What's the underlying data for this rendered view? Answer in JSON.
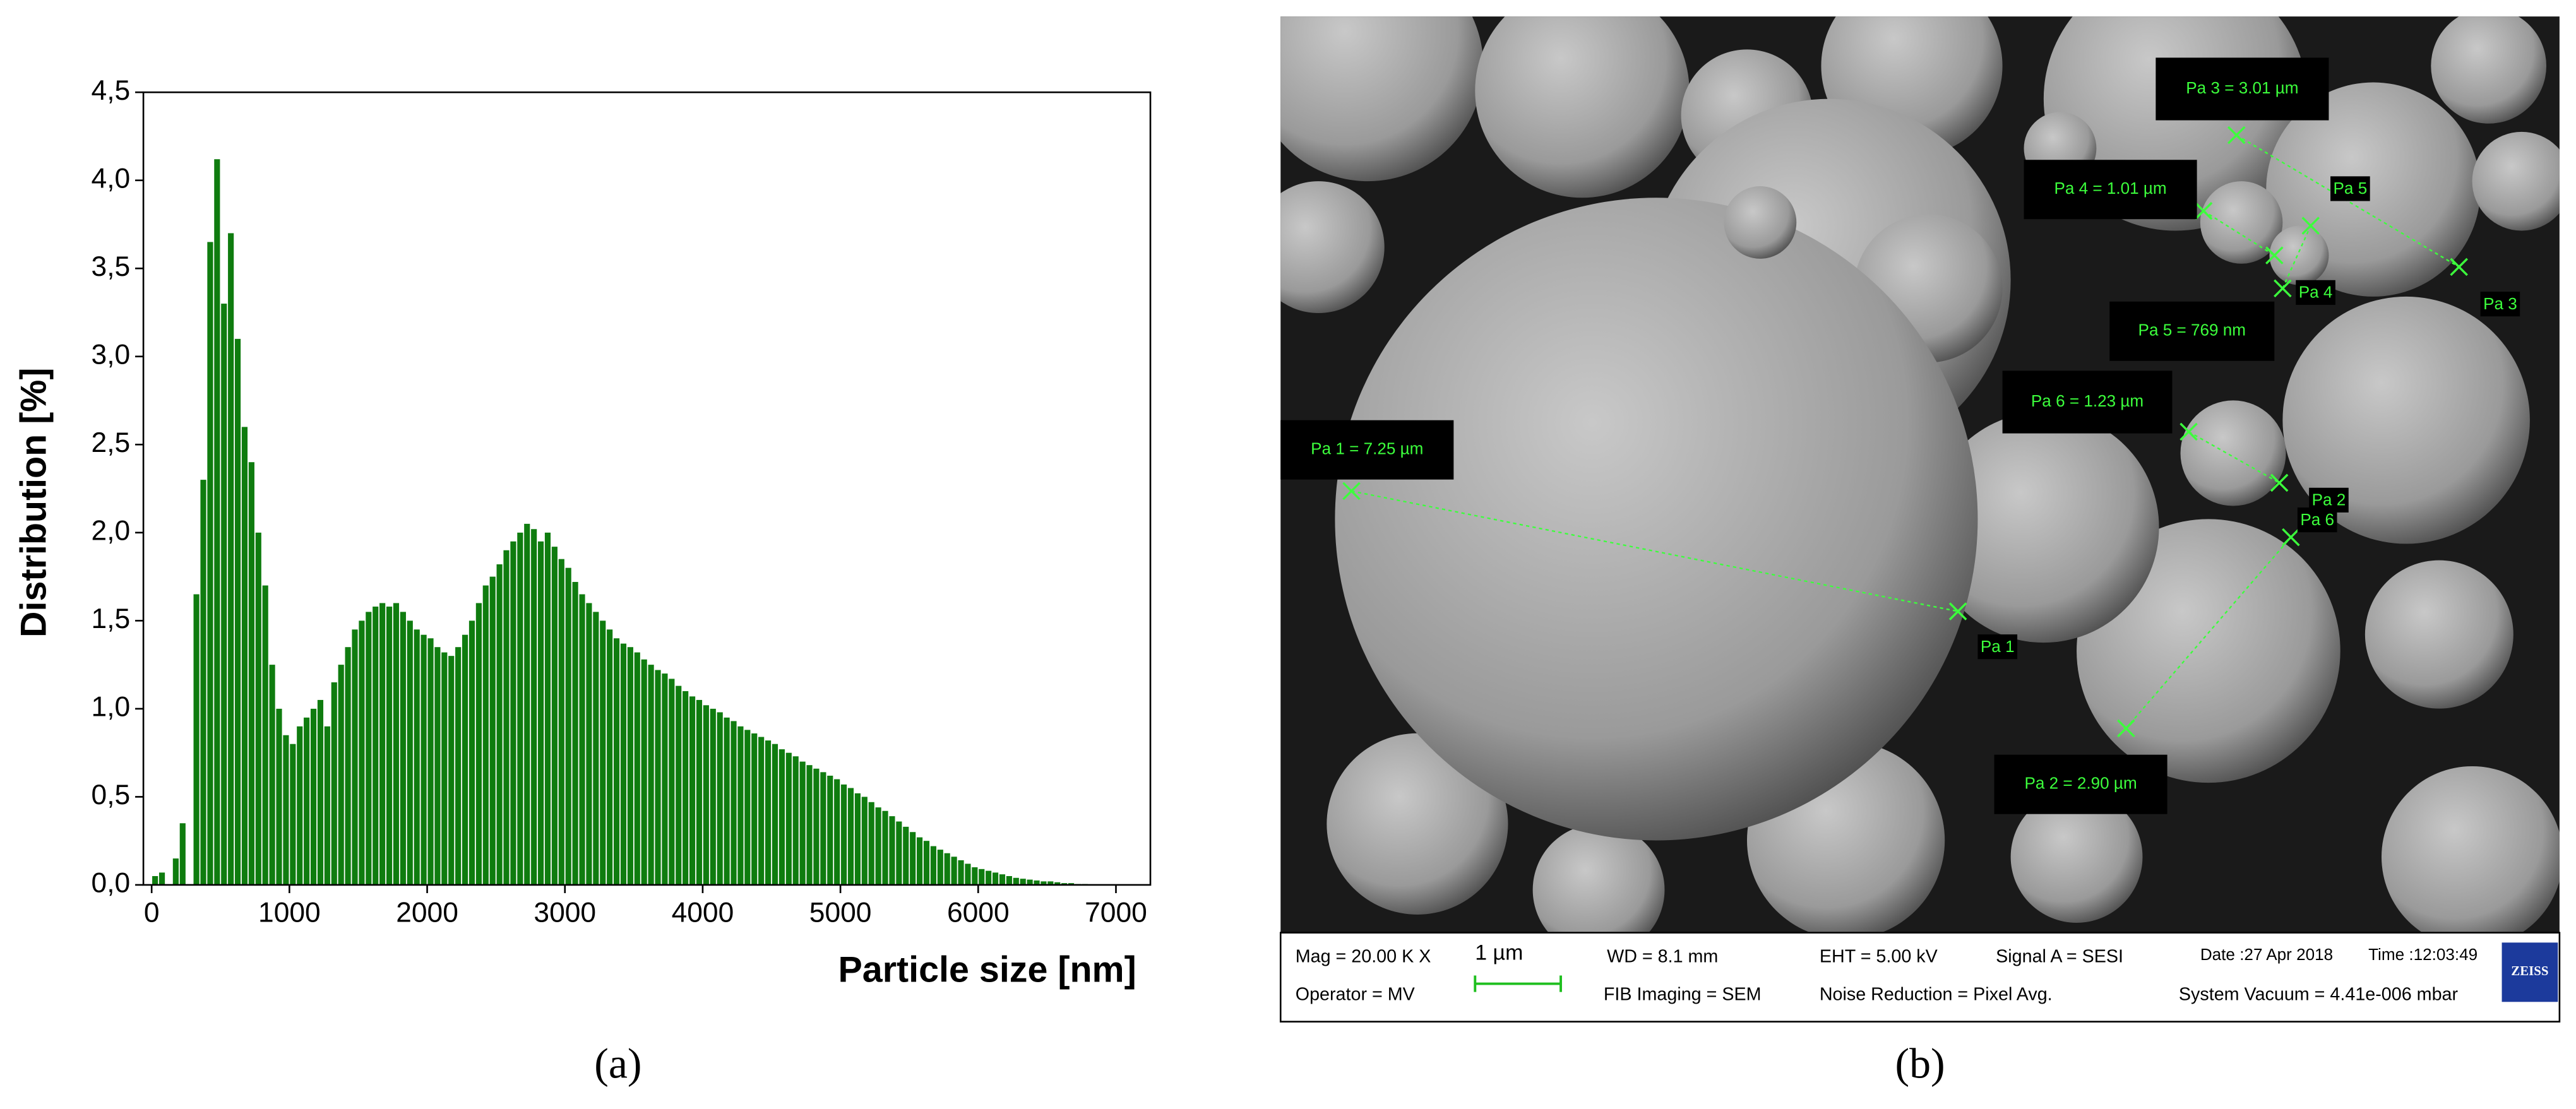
{
  "chart_data": {
    "type": "histogram",
    "panel_label": "(a)",
    "xlabel": "Particle size [nm]",
    "ylabel": "Distribution [%]",
    "color": "#0f7c0f",
    "bins": [
      0,
      50,
      100,
      150,
      200,
      250,
      300,
      350,
      400,
      450,
      500,
      550,
      600,
      650,
      700,
      750,
      800,
      850,
      900,
      950,
      1000,
      1050,
      1100,
      1150,
      1200,
      1250,
      1300,
      1350,
      1400,
      1450,
      1500,
      1550,
      1600,
      1650,
      1700,
      1750,
      1800,
      1850,
      1900,
      1950,
      2000,
      2050,
      2100,
      2150,
      2200,
      2250,
      2300,
      2350,
      2400,
      2450,
      2500,
      2550,
      2600,
      2650,
      2700,
      2750,
      2800,
      2850,
      2900,
      2950,
      3000,
      3050,
      3100,
      3150,
      3200,
      3250,
      3300,
      3350,
      3400,
      3450,
      3500,
      3550,
      3600,
      3650,
      3700,
      3750,
      3800,
      3850,
      3900,
      3950,
      4000,
      4050,
      4100,
      4150,
      4200,
      4250,
      4300,
      4350,
      4400,
      4450,
      4500,
      4550,
      4600,
      4650,
      4700,
      4750,
      4800,
      4850,
      4900,
      4950,
      5000,
      5050,
      5100,
      5150,
      5200,
      5250,
      5300,
      5350,
      5400,
      5450,
      5500,
      5550,
      5600,
      5650,
      5700,
      5750,
      5800,
      5850,
      5900,
      5950,
      6000,
      6050,
      6100,
      6150,
      6200,
      6250,
      6300,
      6350,
      6400,
      6450,
      6500,
      6550,
      6600,
      6650,
      6700,
      6750,
      6800,
      6850,
      6900,
      6950,
      7000
    ],
    "counts": [
      0.05,
      0.07,
      0,
      0.15,
      0.35,
      0,
      1.65,
      2.3,
      3.65,
      4.12,
      3.3,
      3.7,
      3.1,
      2.6,
      2.4,
      2.0,
      1.7,
      1.25,
      1.0,
      0.85,
      0.8,
      0.9,
      0.95,
      1.0,
      1.05,
      0.9,
      1.15,
      1.25,
      1.35,
      1.45,
      1.5,
      1.55,
      1.58,
      1.6,
      1.58,
      1.6,
      1.55,
      1.5,
      1.45,
      1.42,
      1.4,
      1.35,
      1.32,
      1.3,
      1.35,
      1.42,
      1.5,
      1.6,
      1.7,
      1.75,
      1.82,
      1.9,
      1.95,
      2.0,
      2.05,
      2.02,
      1.95,
      2.0,
      1.92,
      1.85,
      1.8,
      1.72,
      1.65,
      1.6,
      1.55,
      1.5,
      1.45,
      1.4,
      1.37,
      1.35,
      1.32,
      1.28,
      1.25,
      1.22,
      1.2,
      1.17,
      1.13,
      1.1,
      1.07,
      1.05,
      1.02,
      1.0,
      0.98,
      0.95,
      0.93,
      0.9,
      0.88,
      0.86,
      0.84,
      0.82,
      0.8,
      0.77,
      0.75,
      0.73,
      0.7,
      0.68,
      0.66,
      0.64,
      0.62,
      0.6,
      0.57,
      0.55,
      0.52,
      0.5,
      0.47,
      0.44,
      0.42,
      0.39,
      0.36,
      0.33,
      0.3,
      0.27,
      0.25,
      0.22,
      0.2,
      0.18,
      0.16,
      0.14,
      0.12,
      0.1,
      0.09,
      0.08,
      0.07,
      0.06,
      0.05,
      0.04,
      0.035,
      0.03,
      0.025,
      0.02,
      0.02,
      0.015,
      0.01,
      0.01,
      0.005,
      0.005,
      0,
      0,
      0,
      0
    ],
    "xlim": [
      -60,
      7250
    ],
    "ylim": [
      0,
      4.5
    ],
    "xticks": [
      0,
      1000,
      2000,
      3000,
      4000,
      5000,
      6000,
      7000
    ],
    "yticks": [
      {
        "value": 0,
        "label": "0,0"
      },
      {
        "value": 0.5,
        "label": "0,5"
      },
      {
        "value": 1,
        "label": "1,0"
      },
      {
        "value": 1.5,
        "label": "1,5"
      },
      {
        "value": 2,
        "label": "2,0"
      },
      {
        "value": 2.5,
        "label": "2,5"
      },
      {
        "value": 3,
        "label": "3,0"
      },
      {
        "value": 3.5,
        "label": "3,5"
      },
      {
        "value": 4,
        "label": "4,0"
      },
      {
        "value": 4.5,
        "label": "4,5"
      }
    ],
    "grid": false
  },
  "sem": {
    "panel_label": "(b)",
    "measurements": [
      "Pa 1 = 7.25 µm",
      "Pa 2 = 2.90 µm",
      "Pa 3 = 3.01 µm",
      "Pa 4 = 1.01 µm",
      "Pa 5 = 769 nm",
      "Pa 6 = 1.23 µm"
    ],
    "tags": [
      "Pa 1",
      "Pa 2",
      "Pa 3",
      "Pa 4",
      "Pa 5",
      "Pa 6"
    ],
    "info": {
      "mag": "Mag =  20.00 K X",
      "operator": "Operator = MV",
      "scale": "1 µm",
      "wd": "WD =  8.1 mm",
      "fib": "FIB Imaging = SEM",
      "eht": "EHT =  5.00 kV",
      "noise": "Noise Reduction = Pixel Avg.",
      "signal": "Signal A = SESI",
      "date": "Date :27 Apr 2018",
      "time": "Time :12:03:49",
      "vacuum": "System Vacuum = 4.41e-006 mbar",
      "logo": "ZEISS"
    }
  }
}
